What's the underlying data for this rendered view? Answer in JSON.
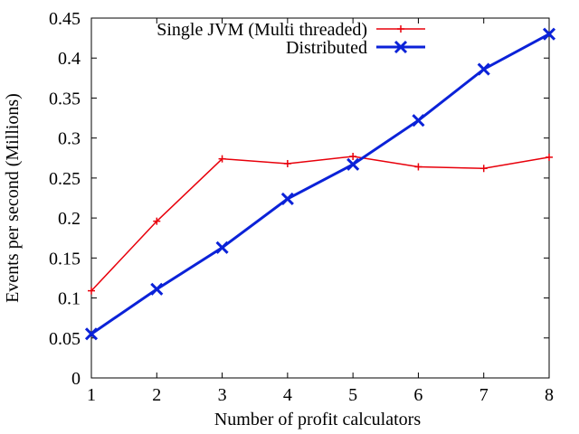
{
  "chart_data": {
    "type": "line",
    "xlabel": "Number of profit calculators",
    "ylabel": "Events per second (Millions)",
    "x": [
      1,
      2,
      3,
      4,
      5,
      6,
      7,
      8
    ],
    "xlim": [
      1,
      8
    ],
    "ylim": [
      0,
      0.45
    ],
    "xticks": [
      "1",
      "2",
      "3",
      "4",
      "5",
      "6",
      "7",
      "8"
    ],
    "yticks": [
      "0",
      "0.05",
      "0.1",
      "0.15",
      "0.2",
      "0.25",
      "0.3",
      "0.35",
      "0.4",
      "0.45"
    ],
    "grid": false,
    "legend_position": "top-right",
    "series": [
      {
        "name": "Single JVM (Multi threaded)",
        "values": [
          0.109,
          0.196,
          0.274,
          0.268,
          0.277,
          0.264,
          0.262,
          0.276
        ],
        "color": "#e8000b",
        "marker": "plus"
      },
      {
        "name": "Distributed",
        "values": [
          0.055,
          0.111,
          0.163,
          0.224,
          0.267,
          0.322,
          0.386,
          0.43
        ],
        "color": "#0b22d8",
        "marker": "cross"
      }
    ]
  }
}
